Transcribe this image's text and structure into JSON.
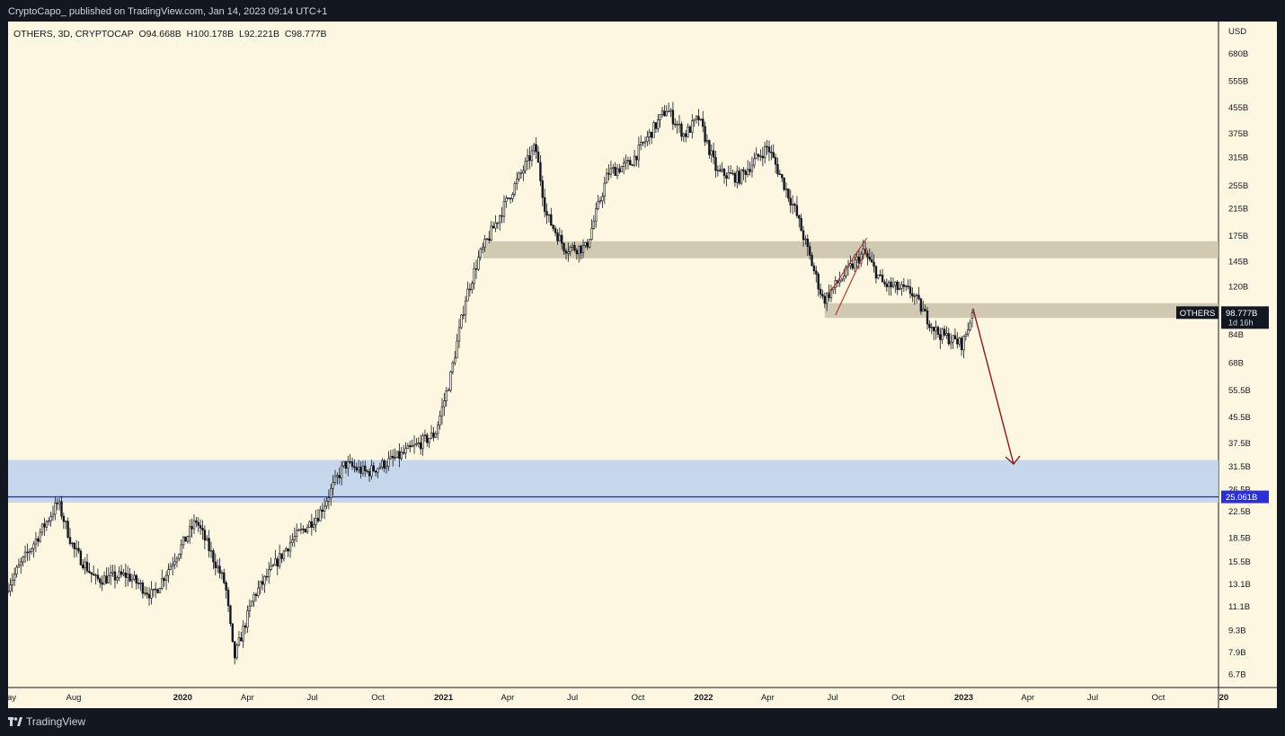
{
  "header": {
    "published_text": "CryptoCapo_  published on TradingView.com, Jan 14, 2023 09:14 UTC+1"
  },
  "footer": {
    "brand": "TradingView"
  },
  "legend": {
    "symbol": "OTHERS, 3D, CRYPTOCAP",
    "open": "O94.668B",
    "high": "H100.178B",
    "low": "L92.221B",
    "close": "C98.777B"
  },
  "price_axis": {
    "currency": "USD",
    "ticks": [
      "680B",
      "555B",
      "455B",
      "375B",
      "315B",
      "255B",
      "215B",
      "175B",
      "145B",
      "120B",
      "84B",
      "68B",
      "55.5B",
      "45.5B",
      "37.5B",
      "31.5B",
      "26.5B",
      "22.5B",
      "18.5B",
      "15.5B",
      "13.1B",
      "11.1B",
      "9.3B",
      "7.9B",
      "6.7B"
    ]
  },
  "time_axis": {
    "ticks": [
      "May",
      "Aug",
      "2020",
      "Apr",
      "Jul",
      "Oct",
      "2021",
      "Apr",
      "Jul",
      "Oct",
      "2022",
      "Apr",
      "Jul",
      "Oct",
      "2023",
      "Apr",
      "Jul",
      "Oct",
      "20"
    ]
  },
  "last_price": {
    "label": "OTHERS",
    "value": "98.777B",
    "countdown": "1d 16h"
  },
  "level_tag": {
    "value": "25.061B"
  },
  "colors": {
    "candle": "#131722",
    "zone_gray": "#c9c1a9",
    "zone_blue": "#bcd0ec",
    "level_line": "#2b2fd6",
    "arrow": "#8b1a1a",
    "wedge": "#b0302a"
  },
  "chart_data": {
    "type": "candlestick",
    "title": "OTHERS, 3D, CRYPTOCAP",
    "price_scale": "log",
    "ylim_billions": [
      6.3,
      780
    ],
    "x_range": [
      "2019-05-01",
      "2024-01-01"
    ],
    "close_path": [
      [
        "2019-05-01",
        13
      ],
      [
        "2019-06-01",
        17
      ],
      [
        "2019-07-10",
        24
      ],
      [
        "2019-08-01",
        17
      ],
      [
        "2019-09-01",
        13.5
      ],
      [
        "2019-10-15",
        14
      ],
      [
        "2019-11-20",
        12
      ],
      [
        "2020-01-20",
        21
      ],
      [
        "2020-03-01",
        13
      ],
      [
        "2020-03-13",
        7.5
      ],
      [
        "2020-04-10",
        12
      ],
      [
        "2020-06-01",
        18
      ],
      [
        "2020-07-10",
        22
      ],
      [
        "2020-08-15",
        32
      ],
      [
        "2020-09-15",
        30
      ],
      [
        "2020-11-01",
        34
      ],
      [
        "2020-12-20",
        40
      ],
      [
        "2021-01-10",
        60
      ],
      [
        "2021-02-01",
        110
      ],
      [
        "2021-02-20",
        150
      ],
      [
        "2021-04-01",
        230
      ],
      [
        "2021-05-10",
        340
      ],
      [
        "2021-05-25",
        205
      ],
      [
        "2021-06-20",
        160
      ],
      [
        "2021-07-20",
        160
      ],
      [
        "2021-08-20",
        280
      ],
      [
        "2021-09-20",
        300
      ],
      [
        "2021-10-20",
        380
      ],
      [
        "2021-11-10",
        450
      ],
      [
        "2021-12-05",
        370
      ],
      [
        "2021-12-25",
        420
      ],
      [
        "2022-01-20",
        280
      ],
      [
        "2022-02-20",
        270
      ],
      [
        "2022-04-01",
        340
      ],
      [
        "2022-05-10",
        210
      ],
      [
        "2022-06-18",
        108
      ],
      [
        "2022-07-10",
        125
      ],
      [
        "2022-08-14",
        155
      ],
      [
        "2022-09-10",
        122
      ],
      [
        "2022-10-20",
        115
      ],
      [
        "2022-11-09",
        96
      ],
      [
        "2022-11-25",
        85
      ],
      [
        "2022-12-30",
        78
      ],
      [
        "2023-01-14",
        98.777
      ]
    ],
    "last_candle": {
      "open": 94.668,
      "high": 100.178,
      "low": 92.221,
      "close": 98.777
    },
    "zones": [
      {
        "type": "supply",
        "from": 148,
        "to": 168,
        "start": "2021-02-25"
      },
      {
        "type": "supply",
        "from": 95,
        "to": 106,
        "start": "2022-06-20"
      },
      {
        "type": "demand",
        "from": 24,
        "to": 33,
        "start": "2019-05-01"
      }
    ],
    "horizontal_level": 25.061,
    "projection_arrow": {
      "from": [
        "2023-01-14",
        102
      ],
      "to": [
        "2023-03-12",
        32
      ]
    },
    "rising_wedge": {
      "from": "2022-06-25",
      "to": "2022-08-18"
    }
  }
}
